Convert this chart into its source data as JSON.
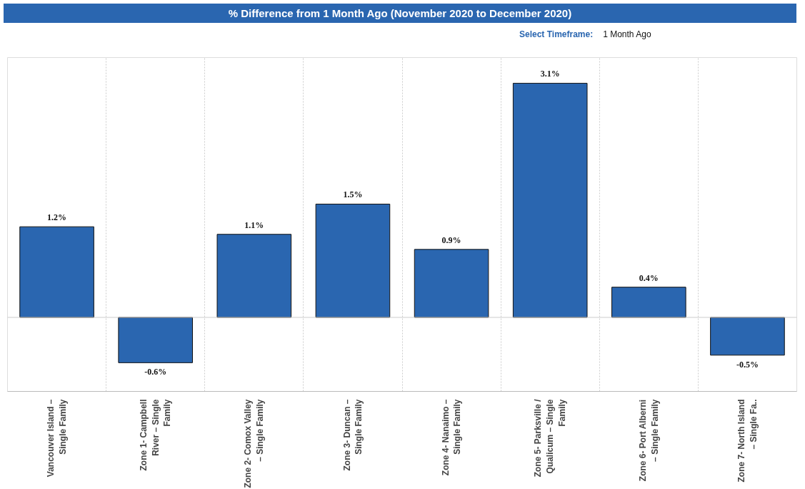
{
  "chart_data": {
    "type": "bar",
    "title": "% Difference from 1 Month Ago (November 2020 to December 2020)",
    "annotations": [
      "Select Timeframe:",
      "1 Month Ago"
    ],
    "categories": [
      "Vancouver Island – Single Family",
      "Zone 1- Campbell River – Single Family",
      "Zone 2- Comox Valley – Single Family",
      "Zone 3- Duncan – Single Family",
      "Zone 4- Nanaimo – Single Family",
      "Zone 5- Parksville / Qualicum – Single Family",
      "Zone 6- Port Alberni – Single Family",
      "Zone 7- North Island – Single Fa.."
    ],
    "values": [
      1.2,
      -0.6,
      1.1,
      1.5,
      0.9,
      3.1,
      0.4,
      -0.5
    ],
    "value_labels": [
      "1.2%",
      "-0.6%",
      "1.1%",
      "1.5%",
      "0.9%",
      "3.1%",
      "0.4%",
      "-0.5%"
    ],
    "color": "#2a66b0",
    "ylim": [
      -0.98,
      3.44
    ],
    "grid": "x",
    "ref_lines": [
      {
        "axis": "y",
        "value": 0,
        "color": "#cccccc"
      }
    ],
    "tick_labels": "x"
  }
}
